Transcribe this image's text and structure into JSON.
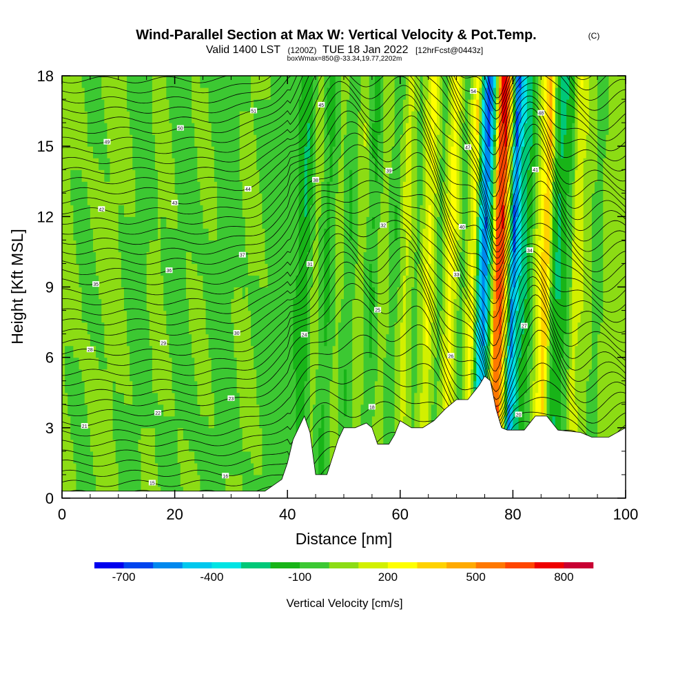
{
  "chart_data": {
    "type": "heatmap",
    "title": "Wind-Parallel Section at Max W: Vertical Velocity & Pot.Temp.",
    "title_mark": "(C)",
    "subtitle_parts": [
      "Valid 1400 LST",
      "(1200Z)",
      "TUE 18 Jan 2022",
      "[12hrFcst@0443z]"
    ],
    "subtitle_small": "boxWmax=850@-33.34,19.77,2202m",
    "xlabel": "Distance [nm]",
    "ylabel": "Height [Kft MSL]",
    "xlim": [
      0,
      100
    ],
    "ylim": [
      0,
      18
    ],
    "x_ticks": [
      "0",
      "20",
      "40",
      "60",
      "80",
      "100"
    ],
    "y_ticks": [
      "0",
      "3",
      "6",
      "9",
      "12",
      "15",
      "18"
    ],
    "colorbar": {
      "label": "Vertical Velocity [cm/s]",
      "tick_labels": [
        "-700",
        "-400",
        "-100",
        "200",
        "500",
        "800"
      ],
      "colors": [
        "#0000ee",
        "#0044ee",
        "#0088ee",
        "#00c8ee",
        "#00e4e4",
        "#00c878",
        "#18b418",
        "#3cc832",
        "#8cdc14",
        "#d2f000",
        "#ffff00",
        "#ffd200",
        "#ffaa00",
        "#ff7800",
        "#ff4600",
        "#ee0000",
        "#c80032"
      ]
    },
    "terrain_kft": [
      [
        0,
        0.3
      ],
      [
        10,
        0.3
      ],
      [
        20,
        0.3
      ],
      [
        25,
        0.3
      ],
      [
        28,
        0.3
      ],
      [
        32,
        0.3
      ],
      [
        36,
        0.3
      ],
      [
        39,
        0.8
      ],
      [
        40,
        1.5
      ],
      [
        41,
        2.5
      ],
      [
        42,
        3.0
      ],
      [
        43,
        3.5
      ],
      [
        44,
        2.8
      ],
      [
        45,
        1.0
      ],
      [
        47,
        1.0
      ],
      [
        49,
        2.5
      ],
      [
        50,
        3.0
      ],
      [
        52,
        3.0
      ],
      [
        54,
        3.2
      ],
      [
        55,
        3.0
      ],
      [
        56,
        2.3
      ],
      [
        58,
        2.3
      ],
      [
        59,
        2.7
      ],
      [
        60,
        3.3
      ],
      [
        62,
        3.0
      ],
      [
        64,
        3.0
      ],
      [
        66,
        3.3
      ],
      [
        68,
        3.8
      ],
      [
        70,
        4.2
      ],
      [
        72,
        4.2
      ],
      [
        74,
        4.8
      ],
      [
        75,
        5.2
      ],
      [
        76,
        5.0
      ],
      [
        77,
        3.8
      ],
      [
        78,
        3.0
      ],
      [
        79,
        2.9
      ],
      [
        82,
        2.9
      ],
      [
        84,
        3.5
      ],
      [
        86,
        3.5
      ],
      [
        88,
        2.9
      ],
      [
        92,
        2.8
      ],
      [
        94,
        2.6
      ],
      [
        97,
        2.6
      ],
      [
        100,
        3.0
      ]
    ],
    "w_cm_s": [
      [
        0,
        60
      ],
      [
        5,
        -20
      ],
      [
        10,
        40
      ],
      [
        15,
        -50
      ],
      [
        18,
        30
      ],
      [
        22,
        -40
      ],
      [
        26,
        20
      ],
      [
        30,
        -60
      ],
      [
        34,
        30
      ],
      [
        38,
        -40
      ],
      [
        42,
        -60
      ],
      [
        44,
        -220
      ],
      [
        46,
        80
      ],
      [
        48,
        -160
      ],
      [
        50,
        60
      ],
      [
        52,
        -120
      ],
      [
        54,
        100
      ],
      [
        56,
        -140
      ],
      [
        58,
        80
      ],
      [
        60,
        -100
      ],
      [
        62,
        180
      ],
      [
        64,
        -60
      ],
      [
        66,
        260
      ],
      [
        68,
        -80
      ],
      [
        70,
        300
      ],
      [
        72,
        -100
      ],
      [
        74,
        320
      ],
      [
        75,
        -380
      ],
      [
        76,
        -700
      ],
      [
        77,
        -200
      ],
      [
        78,
        650
      ],
      [
        79,
        800
      ],
      [
        80,
        200
      ],
      [
        81,
        -700
      ],
      [
        82,
        -350
      ],
      [
        84,
        -150
      ],
      [
        86,
        300
      ],
      [
        87,
        450
      ],
      [
        88,
        -100
      ],
      [
        89,
        -250
      ],
      [
        91,
        -80
      ],
      [
        92,
        200
      ],
      [
        94,
        60
      ],
      [
        96,
        -60
      ],
      [
        98,
        80
      ],
      [
        100,
        40
      ]
    ],
    "theta_c_labels": [
      "14",
      "15",
      "16",
      "17",
      "18",
      "19",
      "20",
      "21",
      "22",
      "23",
      "24",
      "25",
      "26",
      "27",
      "28",
      "29",
      "30",
      "31",
      "32",
      "33",
      "34",
      "35",
      "36",
      "37",
      "38",
      "39",
      "40",
      "41",
      "42",
      "43",
      "44",
      "45",
      "46",
      "47",
      "48",
      "49",
      "50",
      "51",
      "52",
      "53",
      "54",
      "55",
      "56",
      "57"
    ]
  }
}
